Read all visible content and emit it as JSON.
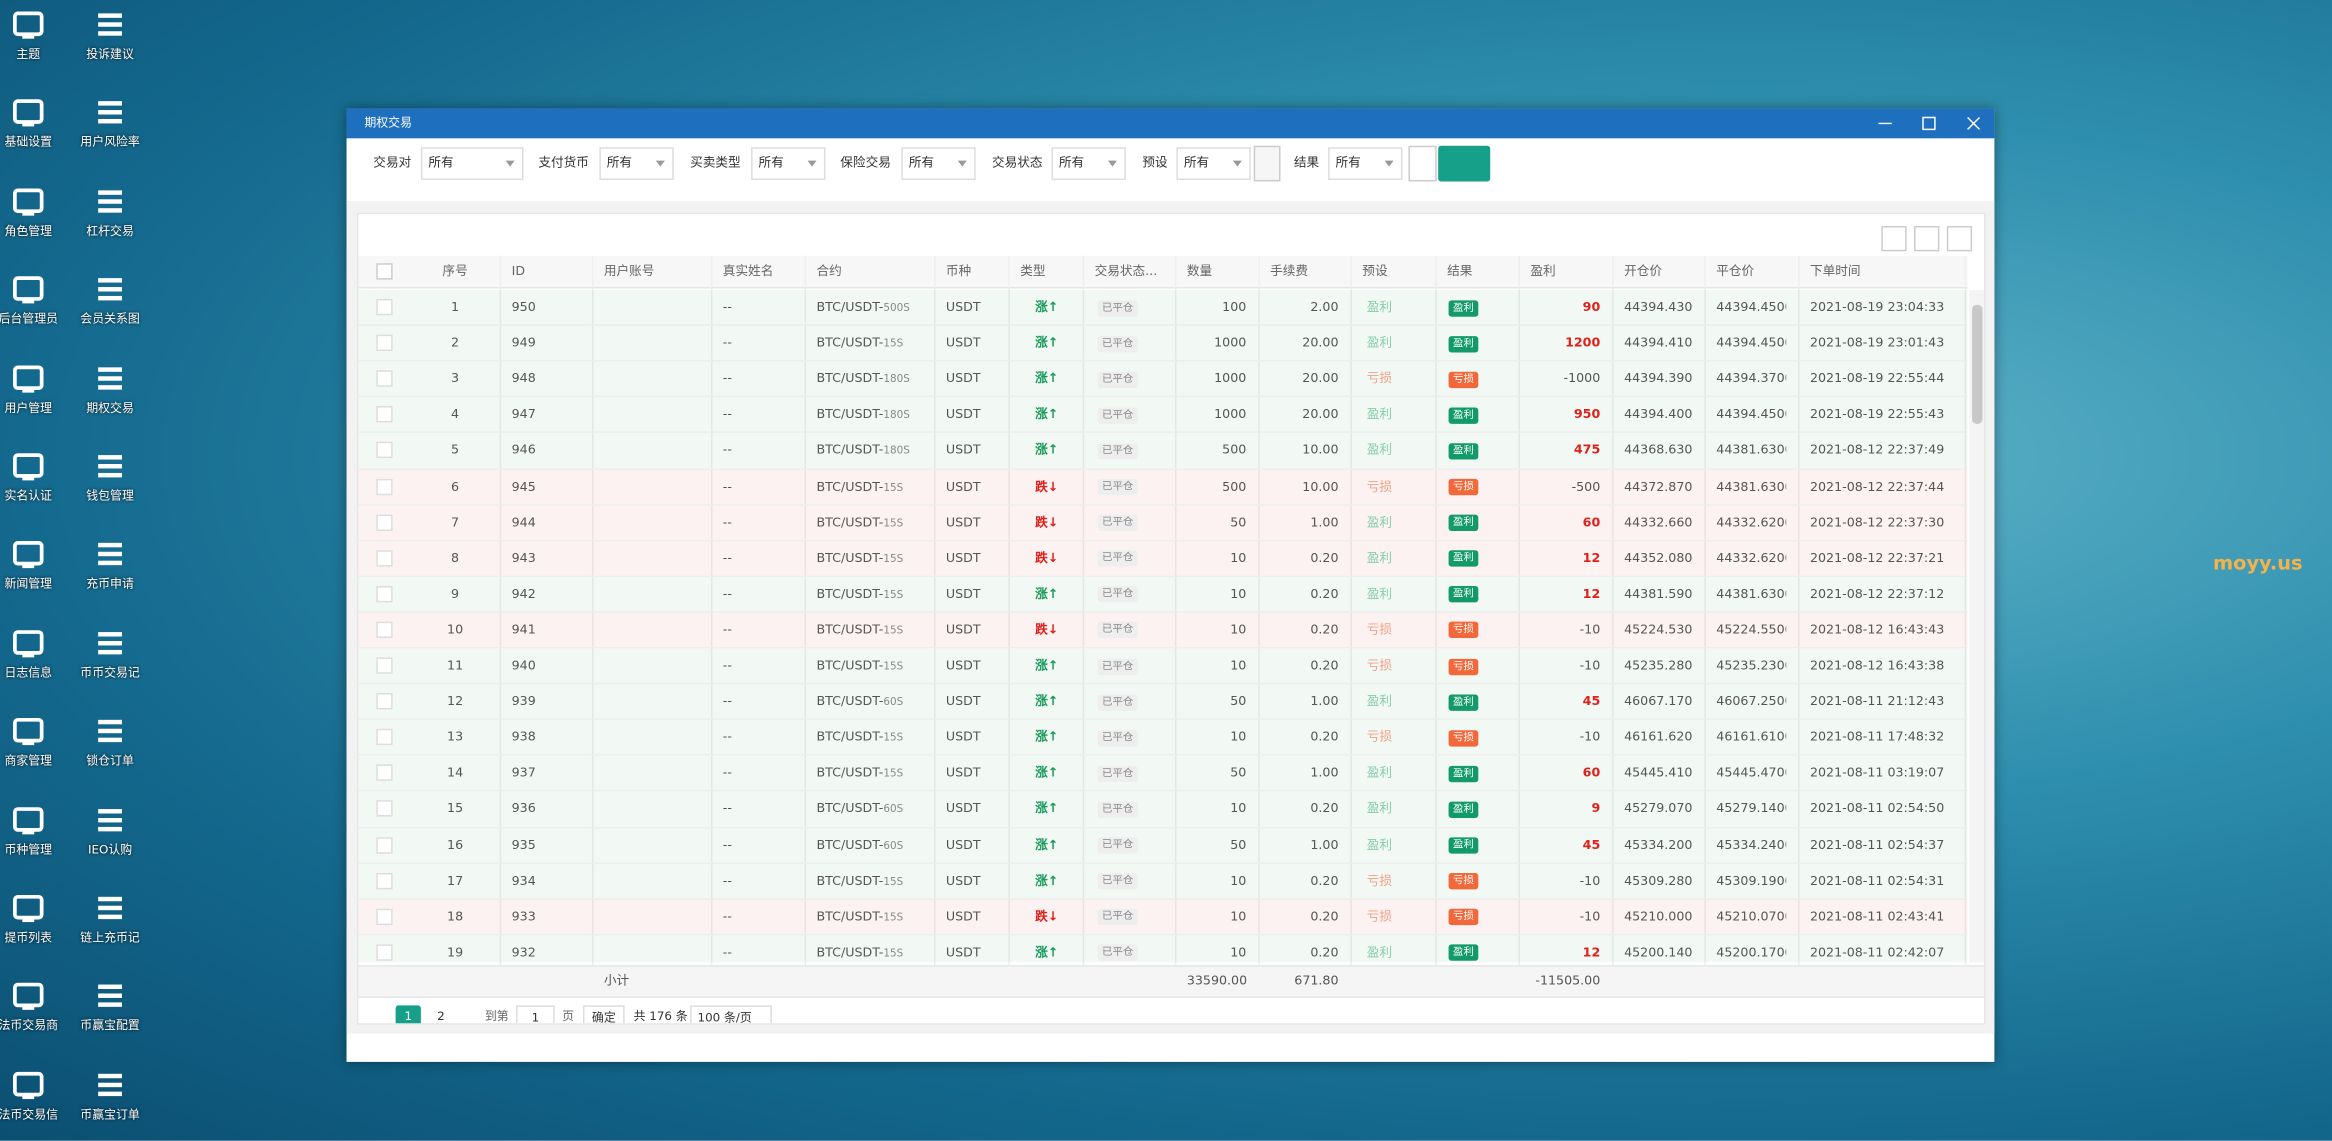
{
  "desktop_icons": [
    {
      "label": "主题"
    },
    {
      "label": "投诉建议"
    },
    {
      "label": "基础设置"
    },
    {
      "label": "用户风险率"
    },
    {
      "label": "角色管理"
    },
    {
      "label": "杠杆交易"
    },
    {
      "label": "后台管理员"
    },
    {
      "label": "会员关系图"
    },
    {
      "label": "用户管理"
    },
    {
      "label": "期权交易"
    },
    {
      "label": "实名认证"
    },
    {
      "label": "钱包管理"
    },
    {
      "label": "新闻管理"
    },
    {
      "label": "充币申请"
    },
    {
      "label": "日志信息"
    },
    {
      "label": "币币交易记"
    },
    {
      "label": "商家管理"
    },
    {
      "label": "锁仓订单"
    },
    {
      "label": "币种管理"
    },
    {
      "label": "IEO认购"
    },
    {
      "label": "提币列表"
    },
    {
      "label": "链上充币记"
    },
    {
      "label": "法币交易商"
    },
    {
      "label": "币赢宝配置"
    },
    {
      "label": "法币交易信"
    },
    {
      "label": "币赢宝订单"
    }
  ],
  "window": {
    "title": "期权交易"
  },
  "filters": [
    {
      "label": "交易对",
      "value": "所有"
    },
    {
      "label": "支付货币",
      "value": "所有"
    },
    {
      "label": "买卖类型",
      "value": "所有"
    },
    {
      "label": "保险交易",
      "value": "所有"
    },
    {
      "label": "交易状态",
      "value": "所有"
    },
    {
      "label": "预设",
      "value": "所有"
    },
    {
      "label": "结果",
      "value": "所有"
    }
  ],
  "table": {
    "columns": [
      "序号",
      "ID",
      "用户账号",
      "真实姓名",
      "合约",
      "币种",
      "类型",
      "交易状态...",
      "数量",
      "手续费",
      "预设",
      "结果",
      "盈利",
      "开仓价",
      "平仓价",
      "下单时间"
    ],
    "rows": [
      {
        "seq": "1",
        "id": "950",
        "name": "--",
        "contract": "BTC/USDT-",
        "period": "500S",
        "currency": "USDT",
        "type": "涨↑",
        "color": "#1a9a5c",
        "status": "已平仓",
        "quantity": "100",
        "fee": "2.00",
        "preset": "盈利",
        "result": "盈利",
        "profit": "90",
        "open": "44394.4300",
        "close": "44394.4500",
        "time": "2021-08-19 23:04:33"
      },
      {
        "seq": "2",
        "id": "949",
        "name": "--",
        "contract": "BTC/USDT-",
        "period": "15S",
        "currency": "USDT",
        "type": "涨↑",
        "color": "#1a9a5c",
        "status": "已平仓",
        "quantity": "1000",
        "fee": "20.00",
        "preset": "盈利",
        "result": "盈利",
        "profit": "1200",
        "open": "44394.4100",
        "close": "44394.4500",
        "time": "2021-08-19 23:01:43"
      },
      {
        "seq": "3",
        "id": "948",
        "name": "--",
        "contract": "BTC/USDT-",
        "period": "180S",
        "currency": "USDT",
        "type": "涨↑",
        "color": "#1a9a5c",
        "status": "已平仓",
        "quantity": "1000",
        "fee": "20.00",
        "preset": "亏损",
        "result": "亏损",
        "profit": "-1000",
        "open": "44394.3900",
        "close": "44394.3700",
        "time": "2021-08-19 22:55:44"
      },
      {
        "seq": "4",
        "id": "947",
        "name": "--",
        "contract": "BTC/USDT-",
        "period": "180S",
        "currency": "USDT",
        "type": "涨↑",
        "color": "#1a9a5c",
        "status": "已平仓",
        "quantity": "1000",
        "fee": "20.00",
        "preset": "盈利",
        "result": "盈利",
        "profit": "950",
        "open": "44394.4000",
        "close": "44394.4500",
        "time": "2021-08-19 22:55:43"
      },
      {
        "seq": "5",
        "id": "946",
        "name": "--",
        "contract": "BTC/USDT-",
        "period": "180S",
        "currency": "USDT",
        "type": "涨↑",
        "color": "#1a9a5c",
        "status": "已平仓",
        "quantity": "500",
        "fee": "10.00",
        "preset": "盈利",
        "result": "盈利",
        "profit": "475",
        "open": "44368.6300",
        "close": "44381.6300",
        "time": "2021-08-12 22:37:49"
      },
      {
        "seq": "6",
        "id": "945",
        "name": "--",
        "contract": "BTC/USDT-",
        "period": "15S",
        "currency": "USDT",
        "type": "跌↓",
        "color": "#e0201b",
        "status": "已平仓",
        "quantity": "500",
        "fee": "10.00",
        "preset": "亏损",
        "result": "亏损",
        "profit": "-500",
        "open": "44372.8700",
        "close": "44381.6300",
        "time": "2021-08-12 22:37:44"
      },
      {
        "seq": "7",
        "id": "944",
        "name": "--",
        "contract": "BTC/USDT-",
        "period": "15S",
        "currency": "USDT",
        "type": "跌↓",
        "color": "#e0201b",
        "status": "已平仓",
        "quantity": "50",
        "fee": "1.00",
        "preset": "盈利",
        "result": "盈利",
        "profit": "60",
        "open": "44332.6600",
        "close": "44332.6200",
        "time": "2021-08-12 22:37:30"
      },
      {
        "seq": "8",
        "id": "943",
        "name": "--",
        "contract": "BTC/USDT-",
        "period": "15S",
        "currency": "USDT",
        "type": "跌↓",
        "color": "#e0201b",
        "status": "已平仓",
        "quantity": "10",
        "fee": "0.20",
        "preset": "盈利",
        "result": "盈利",
        "profit": "12",
        "open": "44352.0800",
        "close": "44332.6200",
        "time": "2021-08-12 22:37:21"
      },
      {
        "seq": "9",
        "id": "942",
        "name": "--",
        "contract": "BTC/USDT-",
        "period": "15S",
        "currency": "USDT",
        "type": "涨↑",
        "color": "#1a9a5c",
        "status": "已平仓",
        "quantity": "10",
        "fee": "0.20",
        "preset": "盈利",
        "result": "盈利",
        "profit": "12",
        "open": "44381.5900",
        "close": "44381.6300",
        "time": "2021-08-12 22:37:12"
      },
      {
        "seq": "10",
        "id": "941",
        "name": "--",
        "contract": "BTC/USDT-",
        "period": "15S",
        "currency": "USDT",
        "type": "跌↓",
        "color": "#e0201b",
        "status": "已平仓",
        "quantity": "10",
        "fee": "0.20",
        "preset": "亏损",
        "result": "亏损",
        "profit": "-10",
        "open": "45224.5300",
        "close": "45224.5500",
        "time": "2021-08-12 16:43:43"
      },
      {
        "seq": "11",
        "id": "940",
        "name": "--",
        "contract": "BTC/USDT-",
        "period": "15S",
        "currency": "USDT",
        "type": "涨↑",
        "color": "#1a9a5c",
        "status": "已平仓",
        "quantity": "10",
        "fee": "0.20",
        "preset": "亏损",
        "result": "亏损",
        "profit": "-10",
        "open": "45235.2800",
        "close": "45235.2300",
        "time": "2021-08-12 16:43:38"
      },
      {
        "seq": "12",
        "id": "939",
        "name": "--",
        "contract": "BTC/USDT-",
        "period": "60S",
        "currency": "USDT",
        "type": "涨↑",
        "color": "#1a9a5c",
        "status": "已平仓",
        "quantity": "50",
        "fee": "1.00",
        "preset": "盈利",
        "result": "盈利",
        "profit": "45",
        "open": "46067.1700",
        "close": "46067.2500",
        "time": "2021-08-11 21:12:43"
      },
      {
        "seq": "13",
        "id": "938",
        "name": "--",
        "contract": "BTC/USDT-",
        "period": "15S",
        "currency": "USDT",
        "type": "涨↑",
        "color": "#1a9a5c",
        "status": "已平仓",
        "quantity": "10",
        "fee": "0.20",
        "preset": "亏损",
        "result": "亏损",
        "profit": "-10",
        "open": "46161.6200",
        "close": "46161.6100",
        "time": "2021-08-11 17:48:32"
      },
      {
        "seq": "14",
        "id": "937",
        "name": "--",
        "contract": "BTC/USDT-",
        "period": "15S",
        "currency": "USDT",
        "type": "涨↑",
        "color": "#1a9a5c",
        "status": "已平仓",
        "quantity": "50",
        "fee": "1.00",
        "preset": "盈利",
        "result": "盈利",
        "profit": "60",
        "open": "45445.4100",
        "close": "45445.4700",
        "time": "2021-08-11 03:19:07"
      },
      {
        "seq": "15",
        "id": "936",
        "name": "--",
        "contract": "BTC/USDT-",
        "period": "60S",
        "currency": "USDT",
        "type": "涨↑",
        "color": "#1a9a5c",
        "status": "已平仓",
        "quantity": "10",
        "fee": "0.20",
        "preset": "盈利",
        "result": "盈利",
        "profit": "9",
        "open": "45279.0700",
        "close": "45279.1400",
        "time": "2021-08-11 02:54:50"
      },
      {
        "seq": "16",
        "id": "935",
        "name": "--",
        "contract": "BTC/USDT-",
        "period": "60S",
        "currency": "USDT",
        "type": "涨↑",
        "color": "#1a9a5c",
        "status": "已平仓",
        "quantity": "50",
        "fee": "1.00",
        "preset": "盈利",
        "result": "盈利",
        "profit": "45",
        "open": "45334.2000",
        "close": "45334.2400",
        "time": "2021-08-11 02:54:37"
      },
      {
        "seq": "17",
        "id": "934",
        "name": "--",
        "contract": "BTC/USDT-",
        "period": "15S",
        "currency": "USDT",
        "type": "涨↑",
        "color": "#1a9a5c",
        "status": "已平仓",
        "quantity": "10",
        "fee": "0.20",
        "preset": "亏损",
        "result": "亏损",
        "profit": "-10",
        "open": "45309.2800",
        "close": "45309.1900",
        "time": "2021-08-11 02:54:31"
      },
      {
        "seq": "18",
        "id": "933",
        "name": "--",
        "contract": "BTC/USDT-",
        "period": "15S",
        "currency": "USDT",
        "type": "跌↓",
        "color": "#e0201b",
        "status": "已平仓",
        "quantity": "10",
        "fee": "0.20",
        "preset": "亏损",
        "result": "亏损",
        "profit": "-10",
        "open": "45210.0000",
        "close": "45210.0700",
        "time": "2021-08-11 02:43:41"
      },
      {
        "seq": "19",
        "id": "932",
        "name": "--",
        "contract": "BTC/USDT-",
        "period": "15S",
        "currency": "USDT",
        "type": "涨↑",
        "color": "#1a9a5c",
        "status": "已平仓",
        "quantity": "10",
        "fee": "0.20",
        "preset": "盈利",
        "result": "盈利",
        "profit": "12",
        "open": "45200.1400",
        "close": "45200.1700",
        "time": "2021-08-11 02:42:07"
      }
    ],
    "subtotal": {
      "label": "小计",
      "quantity": "33590.00",
      "fee": "671.80",
      "profit": "-11505.00"
    }
  },
  "pagination": {
    "pages": [
      "1",
      "2"
    ],
    "goto_label": "到第",
    "goto_value": "1",
    "page_unit": "页",
    "confirm": "确定",
    "total": "共 176 条",
    "page_size": "100 条/页"
  },
  "watermark": "moyy.us"
}
